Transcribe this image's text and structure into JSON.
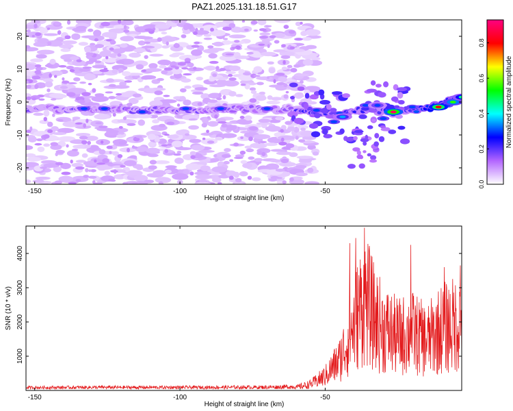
{
  "title": "PAZ1.2025.131.18.51.G17",
  "chart_data": [
    {
      "type": "heatmap",
      "xlabel": "Height of straight line (km)",
      "ylabel": "Frequency (Hz)",
      "xlim": [
        -153,
        -3
      ],
      "ylim": [
        -25,
        25
      ],
      "xticks": [
        -150,
        -100,
        -50
      ],
      "yticks": [
        -20,
        -10,
        0,
        10,
        20
      ],
      "colorbar": {
        "label": "Normalized spectral amplitude",
        "range": [
          0,
          0.93
        ],
        "ticks": [
          0,
          0.2,
          0.4,
          0.6,
          0.8
        ],
        "colors": [
          "#ffffff",
          "#b366ff",
          "#0000ff",
          "#00ffff",
          "#00ff00",
          "#ffff00",
          "#ff0000",
          "#ff0080"
        ]
      },
      "ridge": {
        "description_points": [
          [
            -153,
            -2
          ],
          [
            -110,
            -2.5
          ],
          [
            -70,
            -2
          ],
          [
            -55,
            -2.5
          ],
          [
            -45,
            -4
          ],
          [
            -35,
            -2
          ],
          [
            -25,
            -3.5
          ],
          [
            -15,
            -2
          ],
          [
            -3,
            1.5
          ]
        ],
        "peaks": [
          {
            "x": -26.5,
            "y": -3,
            "value": 0.9
          },
          {
            "x": -11,
            "y": -1.5,
            "value": 0.8
          },
          {
            "x": -6,
            "y": 0,
            "value": 0.55
          },
          {
            "x": -3,
            "y": 1.5,
            "value": 0.45
          },
          {
            "x": -44,
            "y": -4.5,
            "value": 0.35
          },
          {
            "x": -32,
            "y": -1,
            "value": 0.3
          }
        ]
      },
      "grid": false
    },
    {
      "type": "line",
      "xlabel": "Height of straight line (km)",
      "ylabel": "SNR (10 * v/v)",
      "xlim": [
        -153,
        -3
      ],
      "ylim": [
        0,
        4800
      ],
      "xticks": [
        -150,
        -100,
        -50
      ],
      "yticks": [
        1000,
        2000,
        3000,
        4000
      ],
      "series": [
        {
          "color": "#e31a1c",
          "envelope": [
            [
              -153,
              100
            ],
            [
              -130,
              110
            ],
            [
              -100,
              110
            ],
            [
              -70,
              120
            ],
            [
              -60,
              150
            ],
            [
              -55,
              300
            ],
            [
              -50,
              700
            ],
            [
              -45,
              1500
            ],
            [
              -42,
              2500
            ],
            [
              -40,
              3200
            ],
            [
              -38,
              4000
            ],
            [
              -36,
              4400
            ],
            [
              -33,
              3500
            ],
            [
              -30,
              3000
            ],
            [
              -25,
              2600
            ],
            [
              -20,
              2800
            ],
            [
              -15,
              2400
            ],
            [
              -10,
              3000
            ],
            [
              -5,
              3200
            ],
            [
              -3,
              3400
            ]
          ],
          "spikes": [
            [
              -41.5,
              4300
            ],
            [
              -39.5,
              4450
            ],
            [
              -36.5,
              4750
            ],
            [
              -20.5,
              4250
            ],
            [
              -9,
              3600
            ],
            [
              -3.5,
              3650
            ]
          ]
        }
      ],
      "grid": false
    }
  ]
}
